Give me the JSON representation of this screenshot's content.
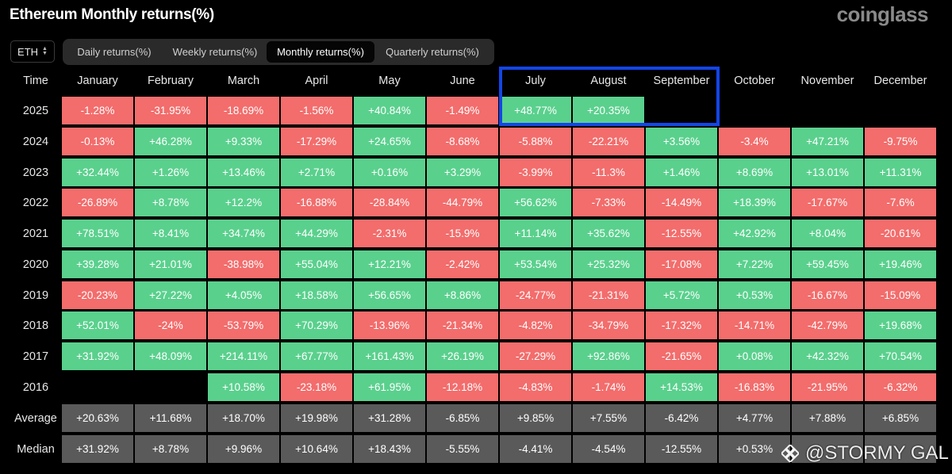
{
  "title": "Ethereum Monthly returns(%)",
  "brand": "coinglass",
  "coin_select": {
    "value": "ETH"
  },
  "tabs": [
    {
      "label": "Daily returns(%)",
      "active": false
    },
    {
      "label": "Weekly returns(%)",
      "active": false
    },
    {
      "label": "Monthly returns(%)",
      "active": true
    },
    {
      "label": "Quarterly returns(%)",
      "active": false
    }
  ],
  "table": {
    "time_header": "Time",
    "months": [
      "January",
      "February",
      "March",
      "April",
      "May",
      "June",
      "July",
      "August",
      "September",
      "October",
      "November",
      "December"
    ],
    "rows": [
      {
        "label": "2025",
        "values": [
          "-1.28%",
          "-31.95%",
          "-18.69%",
          "-1.56%",
          "+40.84%",
          "-1.49%",
          "+48.77%",
          "+20.35%",
          "",
          "",
          "",
          ""
        ]
      },
      {
        "label": "2024",
        "values": [
          "-0.13%",
          "+46.28%",
          "+9.33%",
          "-17.29%",
          "+24.65%",
          "-8.68%",
          "-5.88%",
          "-22.21%",
          "+3.56%",
          "-3.4%",
          "+47.21%",
          "-9.75%"
        ]
      },
      {
        "label": "2023",
        "values": [
          "+32.44%",
          "+1.26%",
          "+13.46%",
          "+2.71%",
          "+0.16%",
          "+3.29%",
          "-3.99%",
          "-11.3%",
          "+1.46%",
          "+8.69%",
          "+13.01%",
          "+11.31%"
        ]
      },
      {
        "label": "2022",
        "values": [
          "-26.89%",
          "+8.78%",
          "+12.2%",
          "-16.88%",
          "-28.84%",
          "-44.79%",
          "+56.62%",
          "-7.33%",
          "-14.49%",
          "+18.39%",
          "-17.67%",
          "-7.6%"
        ]
      },
      {
        "label": "2021",
        "values": [
          "+78.51%",
          "+8.41%",
          "+34.74%",
          "+44.29%",
          "-2.31%",
          "-15.9%",
          "+11.14%",
          "+35.62%",
          "-12.55%",
          "+42.92%",
          "+8.04%",
          "-20.61%"
        ]
      },
      {
        "label": "2020",
        "values": [
          "+39.28%",
          "+21.01%",
          "-38.98%",
          "+55.04%",
          "+12.21%",
          "-2.42%",
          "+53.54%",
          "+25.32%",
          "-17.08%",
          "+7.22%",
          "+59.45%",
          "+19.46%"
        ]
      },
      {
        "label": "2019",
        "values": [
          "-20.23%",
          "+27.22%",
          "+4.05%",
          "+18.58%",
          "+56.65%",
          "+8.86%",
          "-24.77%",
          "-21.31%",
          "+5.72%",
          "+0.53%",
          "-16.67%",
          "-15.09%"
        ]
      },
      {
        "label": "2018",
        "values": [
          "+52.01%",
          "-24%",
          "-53.79%",
          "+70.29%",
          "-13.96%",
          "-21.34%",
          "-4.82%",
          "-34.79%",
          "-17.32%",
          "-14.71%",
          "-42.79%",
          "+19.68%"
        ]
      },
      {
        "label": "2017",
        "values": [
          "+31.92%",
          "+48.09%",
          "+214.11%",
          "+67.77%",
          "+161.43%",
          "+26.19%",
          "-27.29%",
          "+92.86%",
          "-21.65%",
          "+0.08%",
          "+42.32%",
          "+70.54%"
        ]
      },
      {
        "label": "2016",
        "values": [
          "",
          "",
          "+10.58%",
          "-23.18%",
          "+61.95%",
          "-12.18%",
          "-4.83%",
          "-1.74%",
          "+14.53%",
          "-16.83%",
          "-21.95%",
          "-6.32%"
        ]
      }
    ],
    "summary_rows": [
      {
        "label": "Average",
        "values": [
          "+20.63%",
          "+11.68%",
          "+18.70%",
          "+19.98%",
          "+31.28%",
          "-6.85%",
          "+9.85%",
          "+7.55%",
          "-6.42%",
          "+4.77%",
          "+7.88%",
          "+6.85%"
        ]
      },
      {
        "label": "Median",
        "values": [
          "+31.92%",
          "+8.78%",
          "+9.96%",
          "+10.64%",
          "+18.43%",
          "-5.55%",
          "-4.41%",
          "-4.54%",
          "-12.55%",
          "+0.53%",
          "",
          ""
        ]
      }
    ]
  },
  "highlight": {
    "months": [
      "July",
      "August",
      "September"
    ],
    "color": "#1346e6"
  },
  "colors": {
    "positive": "#5ad08d",
    "negative": "#f26d6c",
    "summary": "#5a5a5a",
    "background": "#000000"
  },
  "watermark": {
    "text": "@STORMY GAL"
  }
}
